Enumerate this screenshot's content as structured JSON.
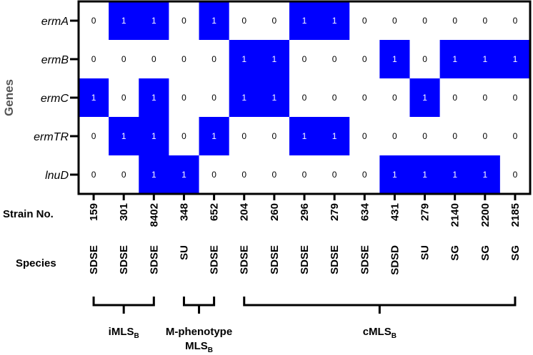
{
  "chart_data": {
    "type": "heatmap",
    "ylabel": "Genes",
    "rows": [
      "ermA",
      "ermB",
      "ermC",
      "ermTR",
      "lnuD"
    ],
    "strain_label": "Strain No.",
    "species_label": "Species",
    "strains": [
      "159",
      "301",
      "8402",
      "348",
      "652",
      "204",
      "260",
      "296",
      "279",
      "634",
      "431",
      "279",
      "2140",
      "2200",
      "2185"
    ],
    "species": [
      "SDSE",
      "SDSE",
      "SDSE",
      "SU",
      "SDSE",
      "SDSE",
      "SDSE",
      "SDSE",
      "SDSE",
      "SDSE",
      "SDSD",
      "SU",
      "SG",
      "SG",
      "SG"
    ],
    "values": [
      [
        0,
        1,
        1,
        0,
        1,
        0,
        0,
        1,
        1,
        0,
        0,
        0,
        0,
        0,
        0
      ],
      [
        0,
        0,
        0,
        0,
        0,
        1,
        1,
        0,
        0,
        0,
        1,
        0,
        1,
        1,
        1
      ],
      [
        1,
        0,
        1,
        0,
        0,
        1,
        1,
        0,
        0,
        0,
        0,
        1,
        0,
        0,
        0
      ],
      [
        0,
        1,
        1,
        0,
        1,
        0,
        0,
        1,
        1,
        0,
        0,
        0,
        0,
        0,
        0
      ],
      [
        0,
        0,
        1,
        1,
        0,
        0,
        0,
        0,
        0,
        0,
        1,
        1,
        1,
        1,
        0
      ]
    ],
    "groups": [
      {
        "label": "iMLS",
        "sub": "B",
        "prefix": "",
        "start": 0,
        "end": 2
      },
      {
        "label": "MLS",
        "sub": "B",
        "prefix": "M-phenotype",
        "start": 3,
        "end": 4
      },
      {
        "label": "cMLS",
        "sub": "B",
        "prefix": "",
        "start": 5,
        "end": 14
      }
    ],
    "colors": {
      "positive": "#0000ff",
      "negative": "#ffffff",
      "text_positive": "#ffffff",
      "text_negative": "#000000"
    }
  }
}
